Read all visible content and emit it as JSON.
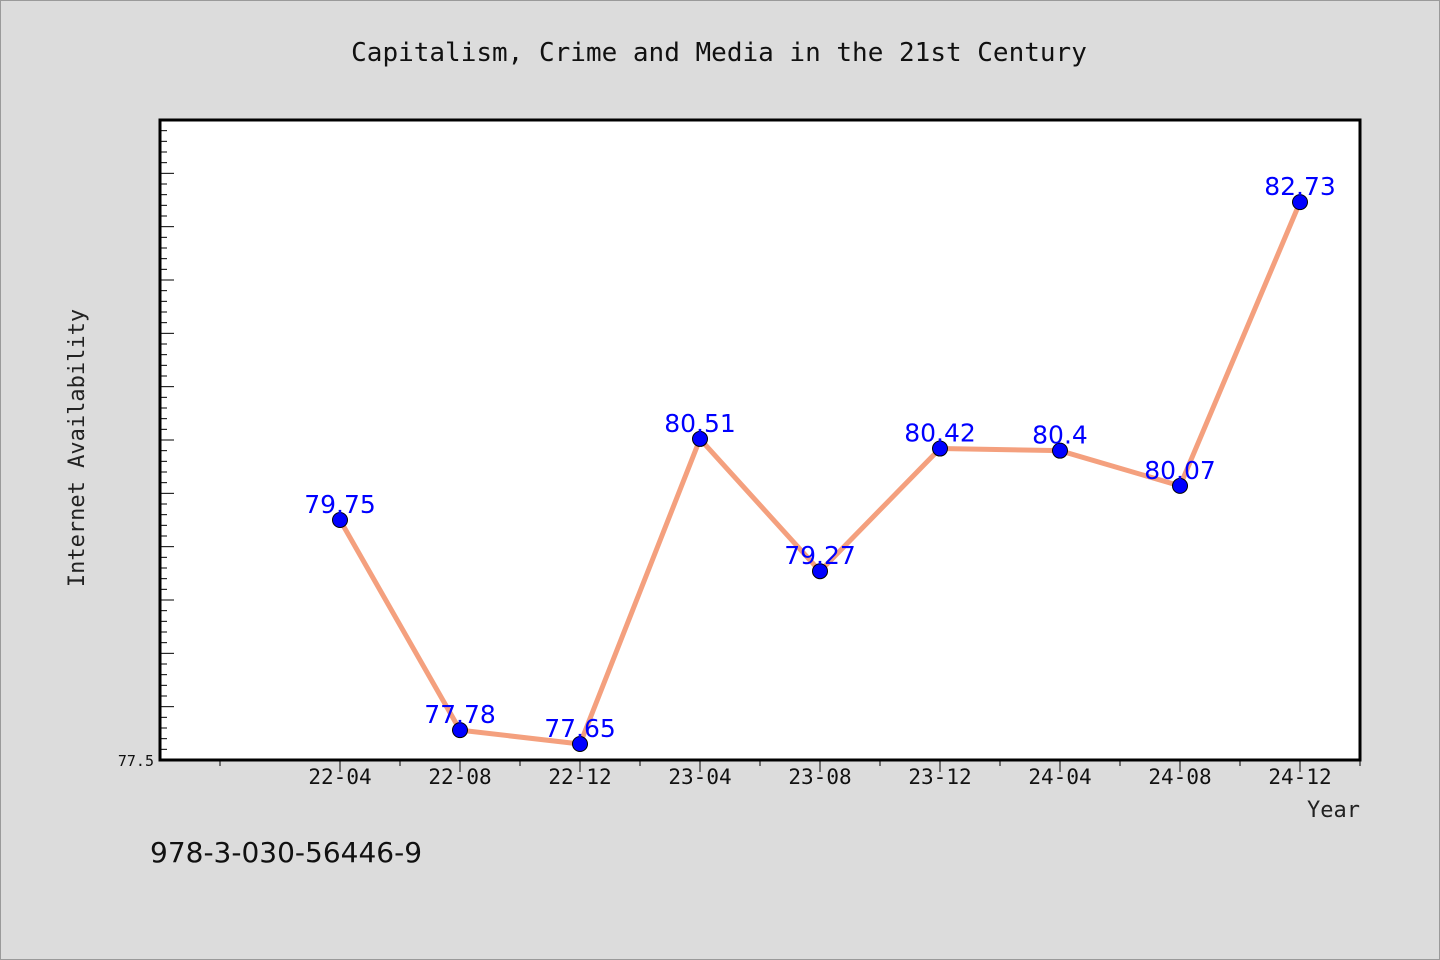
{
  "chart_data": {
    "type": "line",
    "title": "Capitalism, Crime and Media in the 21st Century",
    "xlabel": "Year",
    "ylabel": "Internet Availability",
    "categories": [
      "22-04",
      "22-08",
      "22-12",
      "23-04",
      "23-08",
      "23-12",
      "24-04",
      "24-08",
      "24-12"
    ],
    "series": [
      {
        "values": [
          79.75,
          77.78,
          77.65,
          80.51,
          79.27,
          80.42,
          80.4,
          80.07,
          82.73
        ],
        "data_labels": [
          "79.75",
          "77.78",
          "77.65",
          "80.51",
          "79.27",
          "80.42",
          "80.4",
          "80.07",
          "82.73"
        ],
        "line_color": "#f4a07e",
        "marker_color": "#0000ff"
      }
    ],
    "y_tick_labels": [
      "77.5"
    ],
    "ylim": [
      77.5,
      83.5
    ],
    "grid": false,
    "legend": "none"
  },
  "footer": {
    "isbn": "978-3-030-56446-9"
  },
  "colors": {
    "background": "#dcdcdc",
    "plot_background": "#ffffff",
    "line": "#f4a07e",
    "marker": "#0000ff",
    "data_label": "#0000ff"
  }
}
